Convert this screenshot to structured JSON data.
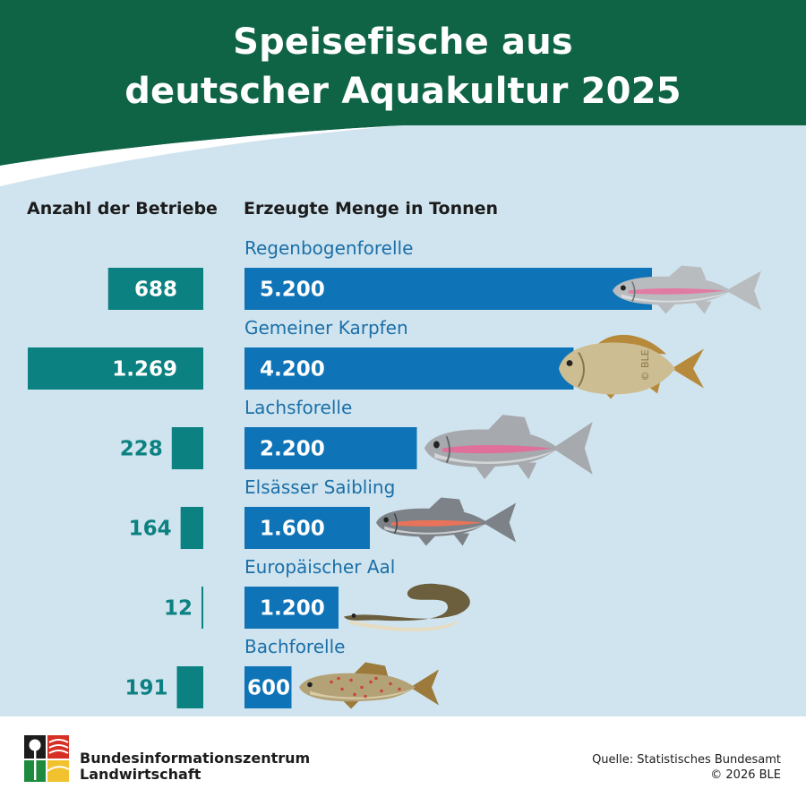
{
  "title": [
    "Speisefische aus",
    "deutscher Aquakultur 2025"
  ],
  "colors": {
    "header_green": "#0f6446",
    "background": "#d0e4ef",
    "betriebe_bar": "#0c8181",
    "menge_bar": "#0f74b7",
    "category_text": "#1a6fa8"
  },
  "chart_data": {
    "type": "bar",
    "left_label": "Anzahl der Betriebe",
    "right_label": "Erzeugte Menge in Tonnen",
    "categories": [
      "Regenbogenforelle",
      "Gemeiner Karpfen",
      "Lachsforelle",
      "Elsässer Saibling",
      "Europäischer Aal",
      "Bachforelle"
    ],
    "series": [
      {
        "name": "Anzahl der Betriebe",
        "values": [
          688,
          1269,
          228,
          164,
          12,
          191
        ],
        "labels": [
          "688",
          "1.269",
          "228",
          "164",
          "12",
          "191"
        ]
      },
      {
        "name": "Erzeugte Menge in Tonnen",
        "values": [
          5200,
          4200,
          2200,
          1600,
          1200,
          600
        ],
        "labels": [
          "5.200",
          "4.200",
          "2.200",
          "1.600",
          "1.200",
          "600"
        ]
      }
    ],
    "fish_icons": [
      "rainbow-trout-icon",
      "carp-icon",
      "salmon-trout-icon",
      "char-icon",
      "eel-icon",
      "brown-trout-icon"
    ],
    "watermark": "© BLE"
  },
  "footer": {
    "org": [
      "Bundesinformationszentrum",
      "Landwirtschaft"
    ],
    "source": "Quelle: Statistisches Bundesamt",
    "copyright": "© 2026 BLE"
  }
}
